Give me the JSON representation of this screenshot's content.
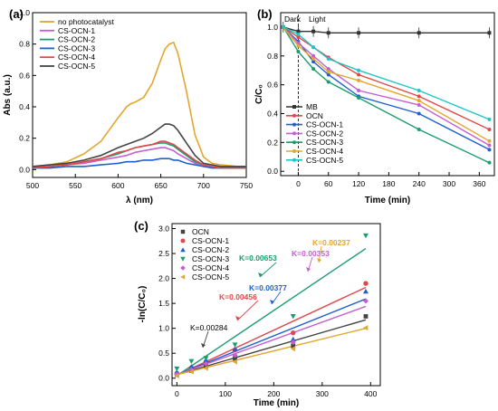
{
  "chart_data": [
    {
      "panel": "(a)",
      "type": "line",
      "xlabel": "λ (nm)",
      "ylabel": "Abs (a.u.)",
      "xlim": [
        500,
        750
      ],
      "ylim": [
        -0.05,
        1.0
      ],
      "xticks": [
        500,
        550,
        600,
        650,
        700,
        750
      ],
      "yticks": [
        0.0,
        0.2,
        0.4,
        0.6,
        0.8,
        1.0
      ],
      "legend_position": "top-left",
      "x": [
        500,
        520,
        540,
        560,
        580,
        600,
        610,
        615,
        620,
        630,
        640,
        650,
        655,
        660,
        665,
        670,
        680,
        690,
        700,
        710,
        720,
        740,
        750
      ],
      "series": [
        {
          "name": "no photocatalyst",
          "color": "#e2a72c",
          "values": [
            0.02,
            0.03,
            0.05,
            0.1,
            0.18,
            0.33,
            0.4,
            0.42,
            0.43,
            0.46,
            0.55,
            0.7,
            0.77,
            0.8,
            0.81,
            0.74,
            0.5,
            0.22,
            0.08,
            0.04,
            0.03,
            0.02,
            0.02
          ]
        },
        {
          "name": "CS-OCN-1",
          "color": "#c45ed2",
          "values": [
            0.01,
            0.02,
            0.03,
            0.04,
            0.06,
            0.08,
            0.09,
            0.1,
            0.11,
            0.12,
            0.13,
            0.14,
            0.14,
            0.13,
            0.12,
            0.1,
            0.07,
            0.04,
            0.02,
            0.02,
            0.01,
            0.01,
            0.01
          ]
        },
        {
          "name": "CS-OCN-2",
          "color": "#1a9e6e",
          "values": [
            0.01,
            0.02,
            0.03,
            0.05,
            0.07,
            0.1,
            0.12,
            0.13,
            0.14,
            0.15,
            0.16,
            0.17,
            0.17,
            0.16,
            0.15,
            0.13,
            0.09,
            0.05,
            0.03,
            0.02,
            0.01,
            0.01,
            0.01
          ]
        },
        {
          "name": "CS-OCN-3",
          "color": "#1f5fcf",
          "values": [
            0.01,
            0.01,
            0.02,
            0.02,
            0.03,
            0.04,
            0.05,
            0.05,
            0.05,
            0.06,
            0.06,
            0.07,
            0.07,
            0.07,
            0.06,
            0.06,
            0.04,
            0.03,
            0.02,
            0.01,
            0.01,
            0.01,
            0.01
          ]
        },
        {
          "name": "CS-OCN-4",
          "color": "#e2474b",
          "values": [
            0.01,
            0.02,
            0.03,
            0.05,
            0.07,
            0.11,
            0.12,
            0.13,
            0.14,
            0.15,
            0.16,
            0.18,
            0.18,
            0.17,
            0.16,
            0.14,
            0.1,
            0.06,
            0.03,
            0.02,
            0.01,
            0.01,
            0.01
          ]
        },
        {
          "name": "CS-OCN-5",
          "color": "#444444",
          "values": [
            0.02,
            0.03,
            0.04,
            0.06,
            0.09,
            0.14,
            0.16,
            0.17,
            0.18,
            0.2,
            0.23,
            0.27,
            0.29,
            0.29,
            0.28,
            0.25,
            0.17,
            0.09,
            0.04,
            0.03,
            0.02,
            0.02,
            0.02
          ]
        }
      ]
    },
    {
      "panel": "(b)",
      "type": "line",
      "xlabel": "Time (min)",
      "ylabel": "C/C₀",
      "xlim": [
        -35,
        390
      ],
      "ylim": [
        -0.03,
        1.1
      ],
      "xticks": [
        0,
        60,
        120,
        180,
        240,
        300,
        360
      ],
      "yticks": [
        0.0,
        0.2,
        0.4,
        0.6,
        0.8,
        1.0
      ],
      "annotations": [
        "Dark",
        "Light"
      ],
      "divider_x": 0,
      "legend_position": "bottom-left",
      "x": [
        -30,
        0,
        30,
        60,
        120,
        240,
        380
      ],
      "series": [
        {
          "name": "MB",
          "color": "#333333",
          "marker": "square",
          "values": [
            1.0,
            0.97,
            0.97,
            0.96,
            0.96,
            0.96,
            0.96
          ]
        },
        {
          "name": "OCN",
          "color": "#e2474b",
          "values": [
            1.0,
            0.93,
            0.86,
            0.79,
            0.67,
            0.52,
            0.29
          ]
        },
        {
          "name": "CS-OCN-1",
          "color": "#1f5fcf",
          "values": [
            1.0,
            0.9,
            0.76,
            0.67,
            0.52,
            0.4,
            0.15
          ]
        },
        {
          "name": "CS-OCN-2",
          "color": "#c45ed2",
          "values": [
            1.0,
            0.89,
            0.8,
            0.71,
            0.56,
            0.46,
            0.18
          ]
        },
        {
          "name": "CS-OCN-3",
          "color": "#1a9e6e",
          "values": [
            1.0,
            0.83,
            0.71,
            0.62,
            0.51,
            0.29,
            0.06
          ]
        },
        {
          "name": "CS-OCN-4",
          "color": "#e2a72c",
          "values": [
            1.0,
            0.87,
            0.78,
            0.69,
            0.63,
            0.49,
            0.21
          ]
        },
        {
          "name": "CS-OCN-5",
          "color": "#1fc6c6",
          "values": [
            1.0,
            0.95,
            0.86,
            0.78,
            0.7,
            0.56,
            0.36
          ]
        }
      ]
    },
    {
      "panel": "(c)",
      "type": "scatter",
      "xlabel": "Time (min)",
      "ylabel": "-ln(C/C₀)",
      "xlim": [
        -10,
        420
      ],
      "ylim": [
        -0.15,
        3.1
      ],
      "xticks": [
        0,
        100,
        200,
        300,
        400
      ],
      "yticks": [
        0.0,
        0.5,
        1.0,
        1.5,
        2.0,
        2.5,
        3.0
      ],
      "legend_position": "top-left",
      "x": [
        0,
        30,
        60,
        120,
        240,
        390
      ],
      "series": [
        {
          "name": "OCN",
          "color": "#444444",
          "marker": "square",
          "k": "K=0.00284",
          "values": [
            0.07,
            0.15,
            0.24,
            0.4,
            0.65,
            1.24
          ]
        },
        {
          "name": "CS-OCN-1",
          "color": "#e2474b",
          "marker": "circle",
          "k": "K=0.00456",
          "values": [
            0.1,
            0.21,
            0.33,
            0.57,
            0.91,
            1.9
          ]
        },
        {
          "name": "CS-OCN-2",
          "color": "#1f5fcf",
          "marker": "triangle-up",
          "k": "K=0.00377",
          "values": [
            0.12,
            0.23,
            0.36,
            0.58,
            0.78,
            1.74
          ]
        },
        {
          "name": "CS-OCN-3",
          "color": "#1a9e6e",
          "marker": "triangle-down",
          "k": "K=0.00653",
          "values": [
            0.19,
            0.34,
            0.4,
            0.67,
            1.24,
            2.86
          ]
        },
        {
          "name": "CS-OCN-4",
          "color": "#c45ed2",
          "marker": "diamond",
          "k": "K=0.00353",
          "values": [
            0.08,
            0.17,
            0.29,
            0.46,
            0.72,
            1.55
          ]
        },
        {
          "name": "CS-OCN-5",
          "color": "#e2a72c",
          "marker": "triangle-left",
          "k": "K=0.00237",
          "values": [
            0.05,
            0.13,
            0.2,
            0.33,
            0.59,
            1.01
          ]
        }
      ],
      "fits": [
        {
          "series": "OCN",
          "from": [
            0,
            0.07
          ],
          "to": [
            390,
            1.17
          ]
        },
        {
          "series": "CS-OCN-1",
          "from": [
            0,
            0.06
          ],
          "to": [
            390,
            1.82
          ]
        },
        {
          "series": "CS-OCN-2",
          "from": [
            0,
            0.07
          ],
          "to": [
            390,
            1.59
          ]
        },
        {
          "series": "CS-OCN-3",
          "from": [
            0,
            0.05
          ],
          "to": [
            390,
            2.6
          ]
        },
        {
          "series": "CS-OCN-4",
          "from": [
            0,
            0.07
          ],
          "to": [
            390,
            1.44
          ]
        },
        {
          "series": "CS-OCN-5",
          "from": [
            0,
            0.07
          ],
          "to": [
            390,
            1.0
          ]
        }
      ]
    }
  ]
}
